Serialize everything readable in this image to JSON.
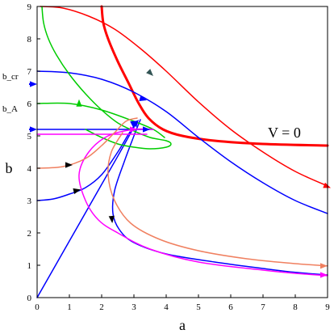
{
  "chart_data": {
    "type": "line",
    "title": "",
    "xlabel": "a",
    "ylabel": "b",
    "xlim": [
      0,
      9
    ],
    "ylim": [
      0,
      9
    ],
    "x_ticks": [
      "0",
      "1",
      "2",
      "3",
      "4",
      "5",
      "6",
      "7",
      "8",
      "9"
    ],
    "y_ticks": [
      "0",
      "1",
      "2",
      "3",
      "4",
      "5",
      "6",
      "7",
      "8",
      "9"
    ],
    "grid": false,
    "legend": "none",
    "side_labels": [
      {
        "text": "b_cr",
        "y": 6.6
      },
      {
        "text": "b_A",
        "y": 5.6
      }
    ],
    "annotations": [
      {
        "text": "V = 0",
        "x": 7.15,
        "y": 4.95
      }
    ],
    "series": [
      {
        "color": "#ff0000",
        "width": 3,
        "points": [
          [
            2.0,
            9.0
          ],
          [
            2.05,
            8.5
          ],
          [
            2.2,
            8.0
          ],
          [
            2.5,
            7.3
          ],
          [
            2.85,
            6.6
          ],
          [
            3.15,
            6.0
          ],
          [
            3.45,
            5.55
          ],
          [
            3.9,
            5.2
          ],
          [
            4.5,
            5.0
          ],
          [
            5.5,
            4.85
          ],
          [
            7.0,
            4.75
          ],
          [
            9.0,
            4.7
          ]
        ]
      },
      {
        "color": "#ff0000",
        "width": 1.5,
        "points": [
          [
            0.1,
            9.0
          ],
          [
            0.8,
            8.95
          ],
          [
            1.6,
            8.7
          ],
          [
            2.4,
            8.3
          ],
          [
            3.2,
            7.7
          ],
          [
            4.0,
            7.0
          ],
          [
            5.0,
            6.05
          ],
          [
            6.0,
            5.2
          ],
          [
            7.0,
            4.5
          ],
          [
            8.0,
            3.9
          ],
          [
            9.0,
            3.45
          ]
        ]
      },
      {
        "color": "#0000ff",
        "width": 1.5,
        "points": [
          [
            0.0,
            7.0
          ],
          [
            1.0,
            6.95
          ],
          [
            2.0,
            6.75
          ],
          [
            3.0,
            6.35
          ],
          [
            4.0,
            5.75
          ],
          [
            5.0,
            4.95
          ],
          [
            6.0,
            4.2
          ],
          [
            7.0,
            3.55
          ],
          [
            8.0,
            3.0
          ],
          [
            9.0,
            2.6
          ]
        ]
      },
      {
        "color": "#0000ff",
        "width": 1.5,
        "points": [
          [
            0.0,
            3.0
          ],
          [
            0.5,
            3.05
          ],
          [
            1.0,
            3.2
          ],
          [
            1.5,
            3.4
          ],
          [
            2.0,
            3.8
          ],
          [
            2.5,
            4.5
          ],
          [
            2.8,
            5.0
          ],
          [
            3.0,
            5.3
          ],
          [
            3.1,
            5.45
          ]
        ]
      },
      {
        "color": "#0000ff",
        "width": 1.5,
        "points": [
          [
            0.0,
            0.0
          ],
          [
            1.0,
            1.75
          ],
          [
            2.0,
            3.5
          ],
          [
            2.6,
            4.55
          ],
          [
            3.1,
            5.45
          ]
        ]
      },
      {
        "color": "#0000ff",
        "width": 1.5,
        "points": [
          [
            3.2,
            5.5
          ],
          [
            3.0,
            5.0
          ],
          [
            2.7,
            4.2
          ],
          [
            2.4,
            3.3
          ],
          [
            2.35,
            2.6
          ],
          [
            2.55,
            2.1
          ],
          [
            3.0,
            1.7
          ],
          [
            4.0,
            1.35
          ],
          [
            5.5,
            1.1
          ],
          [
            7.0,
            0.9
          ],
          [
            8.0,
            0.78
          ],
          [
            9.0,
            0.7
          ]
        ]
      },
      {
        "color": "#0000ff",
        "width": 1.5,
        "points": [
          [
            0.0,
            5.2
          ],
          [
            1.0,
            5.2
          ],
          [
            2.0,
            5.2
          ],
          [
            3.0,
            5.2
          ],
          [
            3.6,
            5.2
          ]
        ]
      },
      {
        "color": "#00cc00",
        "width": 1.5,
        "points": [
          [
            0.15,
            9.0
          ],
          [
            0.2,
            8.5
          ],
          [
            0.35,
            8.0
          ],
          [
            0.6,
            7.5
          ],
          [
            1.0,
            6.9
          ],
          [
            1.5,
            6.3
          ],
          [
            2.0,
            5.8
          ],
          [
            2.5,
            5.4
          ],
          [
            3.0,
            5.15
          ],
          [
            3.5,
            4.95
          ],
          [
            4.0,
            4.85
          ],
          [
            4.15,
            4.75
          ],
          [
            4.0,
            4.65
          ],
          [
            3.5,
            4.6
          ],
          [
            3.0,
            4.65
          ],
          [
            2.5,
            4.75
          ],
          [
            2.0,
            4.95
          ],
          [
            1.5,
            5.2
          ]
        ]
      },
      {
        "color": "#00cc00",
        "width": 1.5,
        "points": [
          [
            0.0,
            6.0
          ],
          [
            1.0,
            6.0
          ],
          [
            2.0,
            5.8
          ],
          [
            3.0,
            5.45
          ],
          [
            3.6,
            5.2
          ],
          [
            3.95,
            4.95
          ]
        ]
      },
      {
        "color": "#ff00ff",
        "width": 1.5,
        "points": [
          [
            0.0,
            5.05
          ],
          [
            1.0,
            5.05
          ],
          [
            2.0,
            5.05
          ],
          [
            3.0,
            5.05
          ],
          [
            3.4,
            5.05
          ]
        ]
      },
      {
        "color": "#ff00ff",
        "width": 1.5,
        "points": [
          [
            3.6,
            5.2
          ],
          [
            3.0,
            5.2
          ],
          [
            2.2,
            5.0
          ],
          [
            1.6,
            4.5
          ],
          [
            1.3,
            3.8
          ],
          [
            1.5,
            3.0
          ],
          [
            1.9,
            2.4
          ],
          [
            2.5,
            2.0
          ],
          [
            3.5,
            1.5
          ],
          [
            5.0,
            1.1
          ],
          [
            7.0,
            0.85
          ],
          [
            8.0,
            0.75
          ],
          [
            9.0,
            0.68
          ]
        ]
      },
      {
        "color": "#f08060",
        "width": 1.5,
        "points": [
          [
            0.0,
            4.0
          ],
          [
            0.8,
            4.05
          ],
          [
            1.5,
            4.3
          ],
          [
            2.0,
            4.7
          ],
          [
            2.4,
            5.1
          ],
          [
            2.75,
            5.45
          ],
          [
            3.1,
            5.55
          ]
        ]
      },
      {
        "color": "#f08060",
        "width": 1.5,
        "points": [
          [
            2.65,
            5.1
          ],
          [
            2.3,
            4.5
          ],
          [
            2.2,
            3.8
          ],
          [
            2.4,
            3.0
          ],
          [
            2.9,
            2.3
          ],
          [
            3.8,
            1.8
          ],
          [
            5.0,
            1.45
          ],
          [
            6.5,
            1.2
          ],
          [
            8.0,
            1.05
          ],
          [
            9.0,
            0.98
          ]
        ]
      }
    ],
    "arrows": [
      {
        "x": 3.3,
        "y": 7.15,
        "dx": 0.3,
        "dy": -0.3,
        "color": "#335555"
      },
      {
        "x": 3.05,
        "y": 6.2,
        "dx": 0.35,
        "dy": -0.1,
        "color": "#0000ff"
      },
      {
        "x": 0.8,
        "y": 4.1,
        "dx": 0.3,
        "dy": 0.0,
        "color": "#000000"
      },
      {
        "x": 1.05,
        "y": 3.27,
        "dx": 0.3,
        "dy": 0.07,
        "color": "#000000"
      },
      {
        "x": 2.3,
        "y": 2.6,
        "dx": 0.03,
        "dy": -0.3,
        "color": "#000000"
      },
      {
        "x": 8.9,
        "y": 3.47,
        "dx": 0.2,
        "dy": -0.08,
        "color": "#ff0000"
      },
      {
        "x": 8.8,
        "y": 0.98,
        "dx": 0.2,
        "dy": 0.0,
        "color": "#f08060"
      },
      {
        "x": 8.8,
        "y": 0.7,
        "dx": 0.2,
        "dy": 0.0,
        "color": "#ff00ff"
      },
      {
        "x": 2.8,
        "y": 5.2,
        "dx": 0.3,
        "dy": 0.0,
        "color": "#ff00ff"
      },
      {
        "x": 3.2,
        "y": 5.2,
        "dx": 0.3,
        "dy": 0.0,
        "color": "#0000ff"
      },
      {
        "x": 1.3,
        "y": 6.05,
        "dx": 0.0,
        "dy": 0.08,
        "color": "#00cc00"
      },
      {
        "x": 2.9,
        "y": 5.35,
        "dx": 0.22,
        "dy": 0.12,
        "color": "#0000ff"
      },
      {
        "x": 2.95,
        "y": 5.25,
        "dx": 0.2,
        "dy": 0.25,
        "color": "#0000ff"
      }
    ],
    "side_arrows": [
      {
        "y": 6.6,
        "color": "#0000ff"
      },
      {
        "y": 5.2,
        "color": "#0000ff"
      }
    ]
  }
}
